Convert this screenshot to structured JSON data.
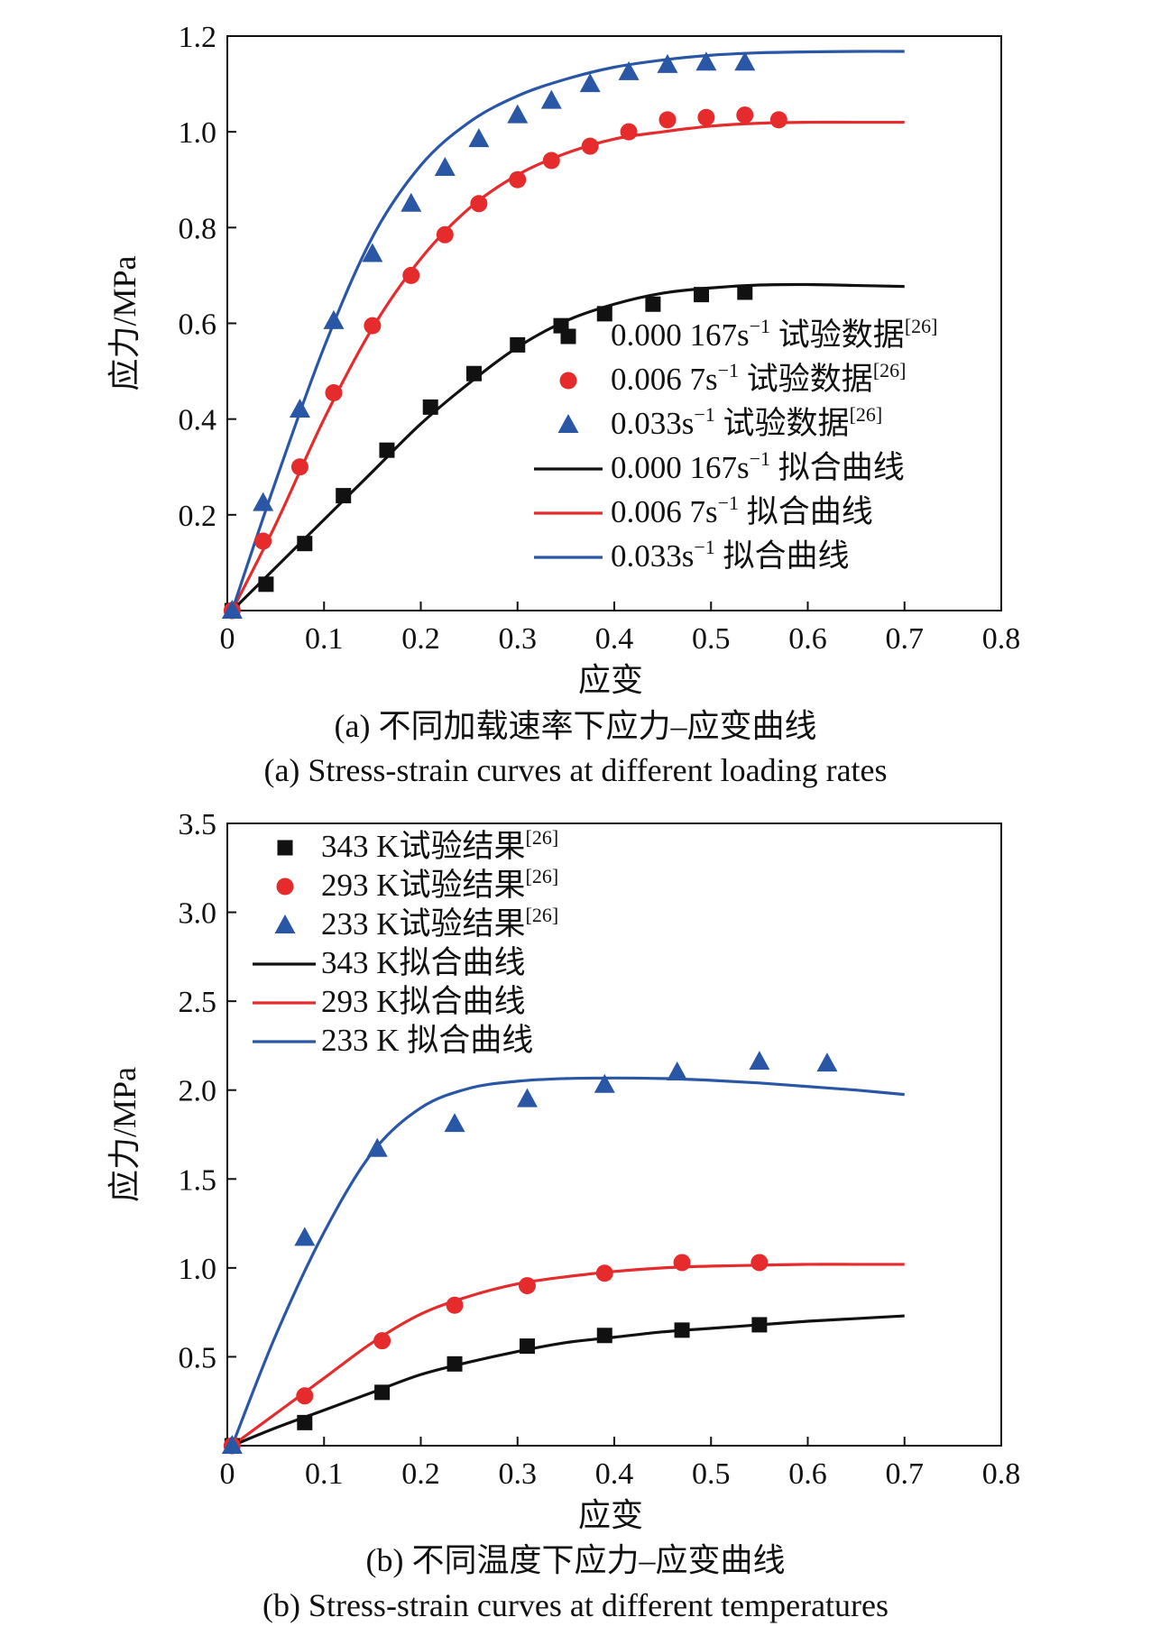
{
  "colors": {
    "black": "#111111",
    "red": "#e52b2b",
    "blue": "#2a56a6"
  },
  "chart_data": [
    {
      "type": "line",
      "xlabel": "应变",
      "ylabel": "应力/MPa",
      "xlim": [
        0,
        0.8
      ],
      "ylim": [
        0,
        1.2
      ],
      "xticks": [
        "0",
        "0.1",
        "0.2",
        "0.3",
        "0.4",
        "0.5",
        "0.6",
        "0.7",
        "0.8"
      ],
      "yticks": [
        "0.2",
        "0.4",
        "0.6",
        "0.8",
        "1.0",
        "1.2"
      ],
      "caption_cn": "(a) 不同加载速率下应力–应变曲线",
      "caption_en": "(a) Stress-strain curves at different loading rates",
      "legend_position": "lower-right",
      "scatter_series": [
        {
          "label": "0.000 167s",
          "sup": "−1",
          "suffix": " 试验数据",
          "ref": "[26]",
          "color": "black",
          "marker": "square",
          "x": [
            0.005,
            0.04,
            0.08,
            0.12,
            0.165,
            0.21,
            0.255,
            0.3,
            0.345,
            0.39,
            0.44,
            0.49,
            0.535
          ],
          "y": [
            0.0,
            0.055,
            0.14,
            0.24,
            0.335,
            0.425,
            0.495,
            0.555,
            0.595,
            0.62,
            0.64,
            0.66,
            0.665
          ]
        },
        {
          "label": "0.006 7s",
          "sup": "−1",
          "suffix": " 试验数据",
          "ref": "[26]",
          "color": "red",
          "marker": "circle",
          "x": [
            0.005,
            0.037,
            0.075,
            0.11,
            0.15,
            0.19,
            0.225,
            0.26,
            0.3,
            0.335,
            0.375,
            0.415,
            0.455,
            0.495,
            0.535,
            0.57
          ],
          "y": [
            0.0,
            0.145,
            0.3,
            0.455,
            0.595,
            0.7,
            0.785,
            0.85,
            0.9,
            0.94,
            0.97,
            1.0,
            1.025,
            1.03,
            1.035,
            1.025
          ]
        },
        {
          "label": "0.033s",
          "sup": "−1",
          "suffix": " 试验数据",
          "ref": "[26]",
          "color": "blue",
          "marker": "triangle",
          "x": [
            0.005,
            0.037,
            0.075,
            0.11,
            0.15,
            0.19,
            0.225,
            0.26,
            0.3,
            0.335,
            0.375,
            0.415,
            0.455,
            0.495,
            0.535
          ],
          "y": [
            0.0,
            0.225,
            0.42,
            0.605,
            0.745,
            0.85,
            0.925,
            0.985,
            1.035,
            1.065,
            1.1,
            1.125,
            1.14,
            1.145,
            1.145
          ]
        }
      ],
      "line_series": [
        {
          "label": "0.000 167s",
          "sup": "−1",
          "suffix": " 拟合曲线",
          "color": "black",
          "x": [
            0.005,
            0.05,
            0.1,
            0.15,
            0.2,
            0.25,
            0.3,
            0.35,
            0.4,
            0.45,
            0.5,
            0.55,
            0.6,
            0.65,
            0.7
          ],
          "y": [
            0.0,
            0.09,
            0.19,
            0.29,
            0.39,
            0.475,
            0.55,
            0.605,
            0.64,
            0.663,
            0.674,
            0.68,
            0.681,
            0.679,
            0.677
          ]
        },
        {
          "label": "0.006 7s",
          "sup": "−1",
          "suffix": " 拟合曲线",
          "color": "red",
          "x": [
            0.005,
            0.05,
            0.1,
            0.15,
            0.2,
            0.25,
            0.3,
            0.35,
            0.4,
            0.45,
            0.5,
            0.55,
            0.6,
            0.65,
            0.7
          ],
          "y": [
            0.0,
            0.18,
            0.4,
            0.59,
            0.735,
            0.84,
            0.91,
            0.955,
            0.985,
            1.0,
            1.012,
            1.018,
            1.02,
            1.02,
            1.02
          ]
        },
        {
          "label": "0.033s",
          "sup": "−1",
          "suffix": " 拟合曲线",
          "color": "blue",
          "x": [
            0.005,
            0.05,
            0.1,
            0.15,
            0.2,
            0.25,
            0.3,
            0.35,
            0.4,
            0.45,
            0.5,
            0.55,
            0.6,
            0.65,
            0.7
          ],
          "y": [
            0.0,
            0.27,
            0.55,
            0.78,
            0.93,
            1.02,
            1.075,
            1.11,
            1.135,
            1.15,
            1.16,
            1.165,
            1.167,
            1.168,
            1.168
          ]
        }
      ]
    },
    {
      "type": "line",
      "xlabel": "应变",
      "ylabel": "应力/MPa",
      "xlim": [
        0,
        0.8
      ],
      "ylim": [
        0,
        3.5
      ],
      "xticks": [
        "0",
        "0.1",
        "0.2",
        "0.3",
        "0.4",
        "0.5",
        "0.6",
        "0.7",
        "0.8"
      ],
      "yticks": [
        "0.5",
        "1.0",
        "1.5",
        "2.0",
        "2.5",
        "3.0",
        "3.5"
      ],
      "caption_cn": "(b) 不同温度下应力–应变曲线",
      "caption_en": "(b) Stress-strain curves at different temperatures",
      "legend_position": "upper-left",
      "scatter_series": [
        {
          "label": "343 K试验结果",
          "sup": "",
          "suffix": "",
          "ref": "[26]",
          "color": "black",
          "marker": "square",
          "x": [
            0.005,
            0.08,
            0.16,
            0.235,
            0.31,
            0.39,
            0.47,
            0.55
          ],
          "y": [
            0.0,
            0.13,
            0.3,
            0.46,
            0.56,
            0.62,
            0.65,
            0.68
          ]
        },
        {
          "label": "293 K试验结果",
          "sup": "",
          "suffix": "",
          "ref": "[26]",
          "color": "red",
          "marker": "circle",
          "x": [
            0.005,
            0.08,
            0.16,
            0.235,
            0.31,
            0.39,
            0.47,
            0.55
          ],
          "y": [
            0.0,
            0.28,
            0.59,
            0.79,
            0.9,
            0.97,
            1.03,
            1.03
          ]
        },
        {
          "label": "233 K试验结果",
          "sup": "",
          "suffix": "",
          "ref": "[26]",
          "color": "blue",
          "marker": "triangle",
          "x": [
            0.005,
            0.08,
            0.155,
            0.235,
            0.31,
            0.39,
            0.465,
            0.55,
            0.62
          ],
          "y": [
            0.0,
            1.17,
            1.67,
            1.81,
            1.95,
            2.03,
            2.1,
            2.16,
            2.15
          ]
        }
      ],
      "line_series": [
        {
          "label": "343 K拟合曲线",
          "sup": "",
          "suffix": "",
          "color": "black",
          "x": [
            0.005,
            0.05,
            0.1,
            0.15,
            0.2,
            0.25,
            0.3,
            0.35,
            0.4,
            0.45,
            0.5,
            0.55,
            0.6,
            0.65,
            0.7
          ],
          "y": [
            0.0,
            0.1,
            0.2,
            0.3,
            0.4,
            0.47,
            0.53,
            0.58,
            0.61,
            0.64,
            0.66,
            0.68,
            0.7,
            0.715,
            0.73
          ]
        },
        {
          "label": "293 K拟合曲线",
          "sup": "",
          "suffix": "",
          "color": "red",
          "x": [
            0.005,
            0.05,
            0.1,
            0.15,
            0.2,
            0.25,
            0.3,
            0.35,
            0.4,
            0.45,
            0.5,
            0.55,
            0.6,
            0.65,
            0.7
          ],
          "y": [
            0.0,
            0.18,
            0.38,
            0.58,
            0.74,
            0.84,
            0.91,
            0.95,
            0.98,
            1.0,
            1.01,
            1.015,
            1.02,
            1.02,
            1.02
          ]
        },
        {
          "label": "233 K 拟合曲线",
          "sup": "",
          "suffix": "",
          "color": "blue",
          "x": [
            0.005,
            0.05,
            0.1,
            0.15,
            0.2,
            0.25,
            0.3,
            0.35,
            0.4,
            0.45,
            0.5,
            0.55,
            0.6,
            0.65,
            0.7
          ],
          "y": [
            0.0,
            0.62,
            1.2,
            1.65,
            1.9,
            2.01,
            2.05,
            2.065,
            2.068,
            2.065,
            2.055,
            2.04,
            2.02,
            2.0,
            1.975
          ]
        }
      ]
    }
  ]
}
